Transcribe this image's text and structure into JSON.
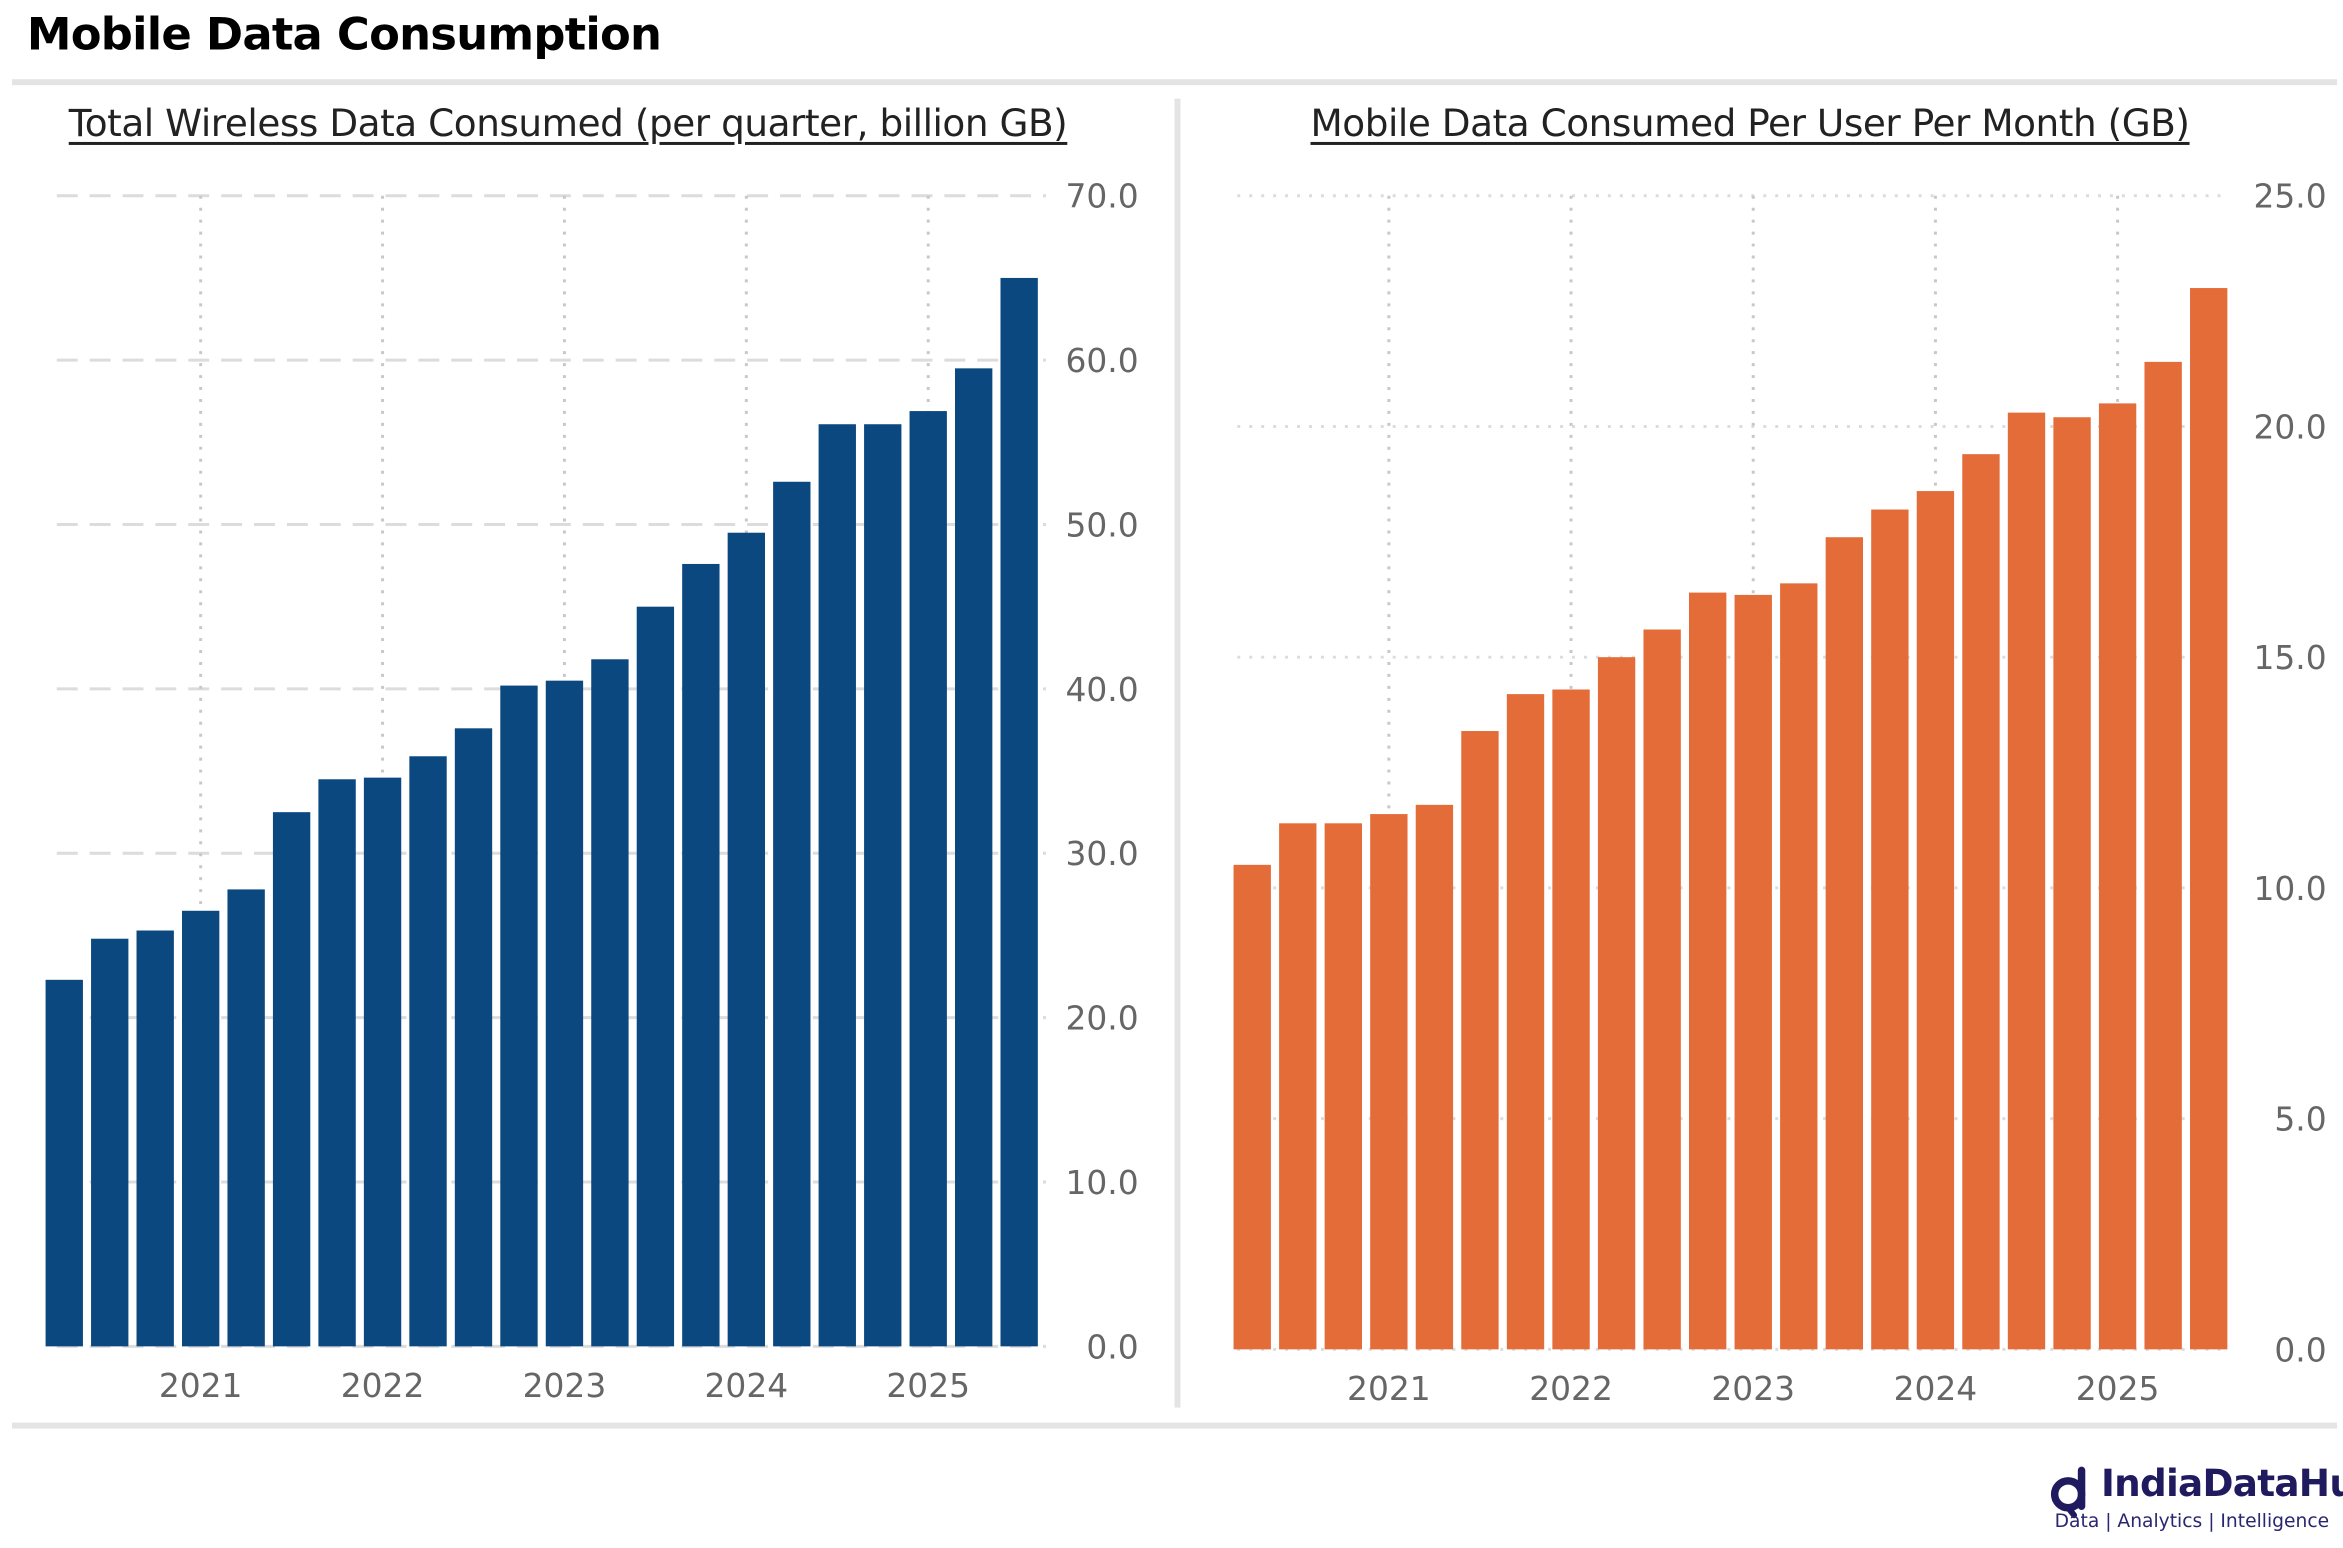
{
  "header": {
    "title": "Mobile Data Consumption"
  },
  "logo": {
    "name": "IndiaDataHub",
    "tagline": "Data | Analytics | Intelligence"
  },
  "colors": {
    "left_bars": "#0b4880",
    "right_bars": "#e46c39",
    "grid": "#d0d0d0",
    "axis_text": "#666666"
  },
  "chart_data": [
    {
      "type": "bar",
      "title": "Total Wireless Data Consumed (per quarter, billion GB)",
      "xlabel": "",
      "ylabel": "",
      "ylim": [
        0,
        70
      ],
      "yticks": [
        "0.0",
        "10.0",
        "20.0",
        "30.0",
        "40.0",
        "50.0",
        "60.0",
        "70.0"
      ],
      "xticks": [
        {
          "index": 3,
          "label": "2021"
        },
        {
          "index": 7,
          "label": "2022"
        },
        {
          "index": 11,
          "label": "2023"
        },
        {
          "index": 15,
          "label": "2024"
        },
        {
          "index": 19,
          "label": "2025"
        }
      ],
      "y_axis_side": "right",
      "grid": true,
      "values": [
        22.3,
        24.8,
        25.3,
        26.5,
        27.8,
        32.5,
        34.5,
        34.6,
        35.9,
        37.6,
        40.2,
        40.5,
        41.8,
        45.0,
        47.6,
        49.5,
        52.6,
        56.1,
        56.1,
        56.9,
        59.5,
        65.0
      ]
    },
    {
      "type": "bar",
      "title": "Mobile Data Consumed Per User Per Month (GB)",
      "xlabel": "",
      "ylabel": "",
      "ylim": [
        0,
        25
      ],
      "yticks": [
        "0.0",
        "5.0",
        "10.0",
        "15.0",
        "20.0",
        "25.0"
      ],
      "xticks": [
        {
          "index": 3,
          "label": "2021"
        },
        {
          "index": 7,
          "label": "2022"
        },
        {
          "index": 11,
          "label": "2023"
        },
        {
          "index": 15,
          "label": "2024"
        },
        {
          "index": 19,
          "label": "2025"
        }
      ],
      "y_axis_side": "right",
      "grid": true,
      "values": [
        10.5,
        11.4,
        11.4,
        11.6,
        11.8,
        13.4,
        14.2,
        14.3,
        15.0,
        15.6,
        16.4,
        16.35,
        16.6,
        17.6,
        18.2,
        18.6,
        19.4,
        20.3,
        20.2,
        20.5,
        21.4,
        23.0
      ]
    }
  ]
}
